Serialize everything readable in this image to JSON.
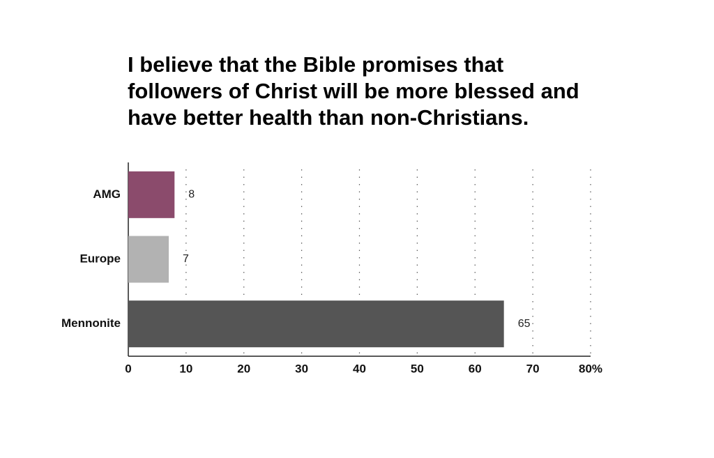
{
  "chart_data": {
    "type": "hbar",
    "title": [
      "I believe that the Bible promises that",
      "followers of Christ will be more blessed and",
      "have better health than non-Christians."
    ],
    "categories": [
      "AMG",
      "Europe",
      "Mennonite"
    ],
    "values": [
      8,
      7,
      65
    ],
    "colors": [
      "#8b4b6c",
      "#b2b2b2",
      "#555555"
    ],
    "xlim": [
      0,
      80
    ],
    "xticks": [
      0,
      10,
      20,
      30,
      40,
      50,
      60,
      70,
      {
        "value": 80,
        "label": "80%"
      }
    ],
    "grid": true
  }
}
